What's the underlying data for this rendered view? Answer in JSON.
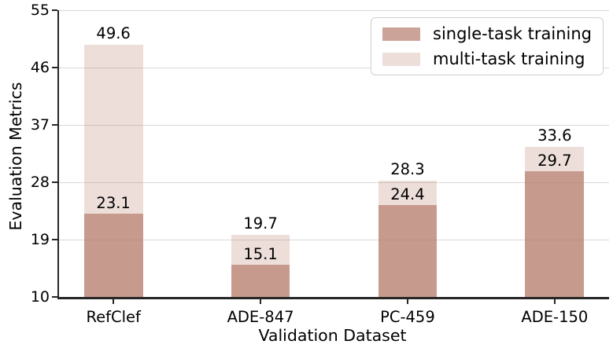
{
  "chart_data": {
    "type": "bar",
    "bar_style": "overlaid",
    "title": "",
    "xlabel": "Validation Dataset",
    "ylabel": "Evaluation Metrics",
    "categories": [
      "RefClef",
      "ADE-847",
      "PC-459",
      "ADE-150"
    ],
    "series": [
      {
        "name": "single-task training",
        "color": "rgba(185,128,112,0.72)",
        "values": [
          23.1,
          15.1,
          24.4,
          29.7
        ]
      },
      {
        "name": "multi-task training",
        "color": "rgba(185,128,112,0.26)",
        "values": [
          49.6,
          19.7,
          28.3,
          33.6
        ]
      }
    ],
    "value_labels": true,
    "ylim": [
      10,
      55
    ],
    "yticks": [
      10,
      19,
      28,
      37,
      46,
      55
    ],
    "xlim": [
      -0.37,
      3.37
    ],
    "bar_width_data_units": 0.4,
    "grid": "horizontal",
    "legend_position": "upper right"
  },
  "colors": {
    "grid": "#d9d9d9",
    "spine": "#262626",
    "text": "#000000",
    "legend_border": "#cfcfcf",
    "single_task_flat": "#cfa79d",
    "multi_task_flat": "#ecdfdb"
  }
}
